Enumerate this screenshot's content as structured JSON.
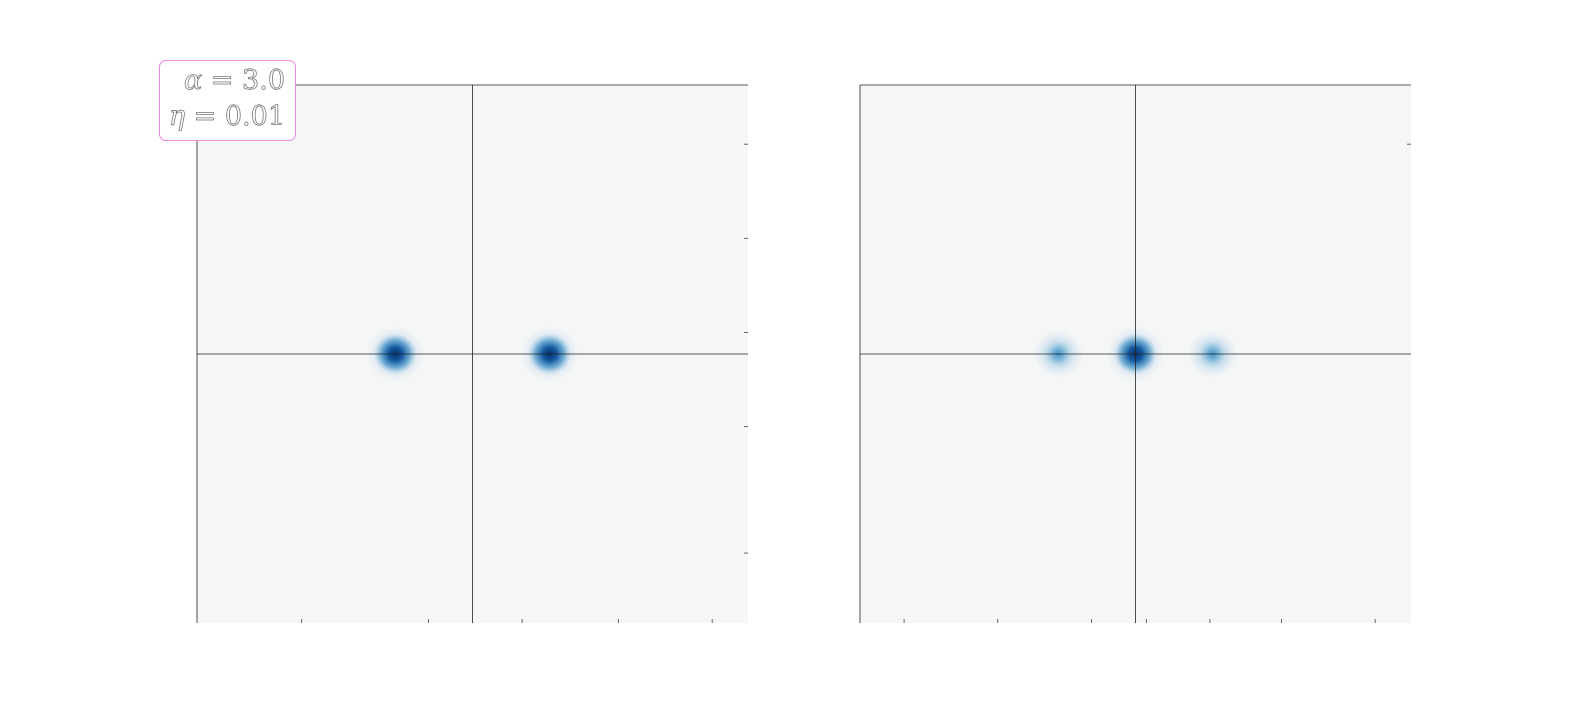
{
  "chart_data": [
    {
      "type": "heatmap",
      "panel": "left",
      "colormap": "Blues",
      "background_color": "#f5f6f6",
      "peak_color": "#08306b",
      "xlim": [
        -1,
        1
      ],
      "ylim": [
        -1,
        1
      ],
      "crosshair": {
        "x": 0,
        "y": 0
      },
      "peaks": [
        {
          "x": -0.28,
          "y": 0,
          "intensity": 1.0,
          "width": 0.07
        },
        {
          "x": 0.28,
          "y": 0,
          "intensity": 1.0,
          "width": 0.07
        }
      ],
      "x_ticks": [
        -0.62,
        -0.16,
        0.18,
        0.53,
        0.87
      ],
      "y_ticks": [
        0.78,
        0.43,
        0.08,
        -0.27,
        -0.74
      ]
    },
    {
      "type": "heatmap",
      "panel": "right",
      "colormap": "Blues",
      "background_color": "#f5f6f6",
      "peak_color": "#08306b",
      "xlim": [
        -1,
        1
      ],
      "ylim": [
        -1,
        1
      ],
      "crosshair": {
        "x": 0,
        "y": 0
      },
      "peaks": [
        {
          "x": -0.28,
          "y": 0,
          "intensity": 0.55,
          "width": 0.06
        },
        {
          "x": 0.0,
          "y": 0,
          "intensity": 1.0,
          "width": 0.07
        },
        {
          "x": 0.28,
          "y": 0,
          "intensity": 0.55,
          "width": 0.06
        }
      ],
      "x_ticks": [
        -0.84,
        -0.5,
        -0.16,
        0.04,
        0.27,
        0.53,
        0.87
      ],
      "y_ticks": [
        0.78
      ]
    }
  ],
  "annotation": {
    "alpha_symbol": "α",
    "alpha_text": " = 3.0",
    "eta_symbol": "η",
    "eta_text": " = 0.01"
  }
}
